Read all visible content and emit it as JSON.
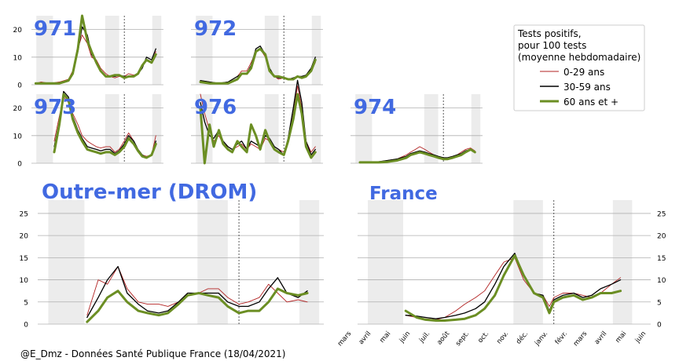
{
  "credit": "@E_Dmz - Données Santé Publique France (18/04/2021)",
  "colors": {
    "young": "#b22222",
    "middle": "#000000",
    "old": "#6b8e23",
    "title": "#4169e1",
    "shade": "#ececec",
    "grid": "#b0b0b0"
  },
  "legend": {
    "title_lines": [
      "Tests positifs,",
      "pour 100 tests",
      "(moyenne hebdomadaire)"
    ],
    "entries": [
      {
        "key": "young",
        "label": "0-29 ans"
      },
      {
        "key": "middle",
        "label": "30-59 ans"
      },
      {
        "key": "old",
        "label": "60 ans et +"
      }
    ]
  },
  "chart_data": [
    {
      "type": "line",
      "title": "971",
      "ylim": [
        0,
        25
      ],
      "yticks": [
        0,
        10,
        20
      ],
      "x_range": [
        "2020-03-01",
        "2021-05-10"
      ],
      "shaded_periods": [
        [
          "2020-03-17",
          "2020-05-11"
        ],
        [
          "2020-10-30",
          "2020-12-15"
        ],
        [
          "2021-04-03",
          "2021-05-03"
        ]
      ],
      "marker_date": "2021-01-01",
      "x": [
        "2020-03-15",
        "2020-04-01",
        "2020-05-01",
        "2020-06-01",
        "2020-07-01",
        "2020-07-15",
        "2020-08-01",
        "2020-08-15",
        "2020-09-01",
        "2020-09-15",
        "2020-10-01",
        "2020-10-15",
        "2020-11-01",
        "2020-11-15",
        "2020-12-01",
        "2020-12-15",
        "2021-01-01",
        "2021-01-15",
        "2021-02-01",
        "2021-02-15",
        "2021-03-01",
        "2021-03-15",
        "2021-04-01",
        "2021-04-15"
      ],
      "series": [
        {
          "name": "0-29 ans",
          "key": "young",
          "values": [
            0.5,
            1,
            0.5,
            1,
            2,
            5,
            13,
            18,
            15,
            10,
            9,
            6,
            4,
            3,
            2.5,
            3,
            3,
            4,
            3.5,
            4,
            7,
            9,
            8,
            12
          ]
        },
        {
          "name": "30-59 ans",
          "key": "middle",
          "values": [
            0.5,
            0.5,
            0.5,
            0.5,
            1.5,
            4,
            12,
            21,
            18,
            11,
            8,
            5,
            3,
            3,
            3,
            3.5,
            3,
            3,
            3,
            4,
            6,
            10,
            9,
            13
          ]
        },
        {
          "name": "60 ans et +",
          "key": "old",
          "values": [
            0.5,
            0.5,
            0.5,
            0.5,
            1.5,
            4,
            13,
            25,
            16,
            12,
            8,
            5,
            3,
            3,
            3.5,
            3.5,
            2.5,
            3,
            3,
            4,
            7,
            9,
            8,
            11
          ]
        }
      ]
    },
    {
      "type": "line",
      "title": "972",
      "ylim": [
        0,
        25
      ],
      "yticks": [
        0,
        10,
        20
      ],
      "x_range": [
        "2020-03-01",
        "2021-05-10"
      ],
      "shaded_periods": [
        [
          "2020-03-17",
          "2020-05-11"
        ],
        [
          "2020-10-30",
          "2020-12-15"
        ],
        [
          "2021-04-03",
          "2021-05-03"
        ]
      ],
      "marker_date": "2021-01-01",
      "x": [
        "2020-04-01",
        "2020-05-01",
        "2020-06-01",
        "2020-07-01",
        "2020-08-01",
        "2020-08-15",
        "2020-09-01",
        "2020-09-15",
        "2020-10-01",
        "2020-10-15",
        "2020-11-01",
        "2020-11-15",
        "2020-12-01",
        "2020-12-15",
        "2021-01-01",
        "2021-01-15",
        "2021-02-01",
        "2021-02-15",
        "2021-03-01",
        "2021-03-15",
        "2021-04-01",
        "2021-04-15"
      ],
      "series": [
        {
          "name": "0-29 ans",
          "key": "young",
          "values": [
            1.5,
            1,
            0.5,
            1,
            3,
            5,
            5,
            8,
            12,
            13,
            10,
            5,
            3,
            2,
            2.5,
            2,
            2,
            3,
            2.5,
            3,
            5,
            8
          ]
        },
        {
          "name": "30-59 ans",
          "key": "middle",
          "values": [
            1.5,
            1,
            0.5,
            1,
            3,
            4,
            4,
            7,
            13,
            14,
            11,
            6,
            3,
            2.5,
            2.5,
            2,
            2.5,
            3,
            3,
            3.5,
            6,
            10
          ]
        },
        {
          "name": "60 ans et +",
          "key": "old",
          "values": [
            1,
            0.5,
            0.5,
            0.5,
            2,
            4,
            4,
            6,
            12,
            13,
            11,
            5,
            3,
            3,
            2.5,
            2,
            2,
            3,
            2.5,
            3,
            5,
            9
          ]
        }
      ]
    },
    {
      "type": "line",
      "title": "973",
      "ylim": [
        0,
        25
      ],
      "yticks": [
        0,
        10,
        20
      ],
      "x_range": [
        "2020-03-01",
        "2021-05-10"
      ],
      "shaded_periods": [
        [
          "2020-03-17",
          "2020-05-11"
        ],
        [
          "2020-10-30",
          "2020-12-15"
        ],
        [
          "2021-04-03",
          "2021-05-03"
        ]
      ],
      "marker_date": "2021-01-01",
      "x": [
        "2020-05-15",
        "2020-06-01",
        "2020-06-15",
        "2020-07-01",
        "2020-07-15",
        "2020-08-01",
        "2020-08-15",
        "2020-09-01",
        "2020-09-15",
        "2020-10-01",
        "2020-10-15",
        "2020-11-01",
        "2020-11-15",
        "2020-12-01",
        "2020-12-15",
        "2021-01-01",
        "2021-01-15",
        "2021-02-01",
        "2021-02-15",
        "2021-03-01",
        "2021-03-15",
        "2021-04-01",
        "2021-04-15"
      ],
      "series": [
        {
          "name": "0-29 ans",
          "key": "young",
          "values": [
            8,
            17,
            24,
            22,
            18,
            14,
            10,
            8,
            7,
            6,
            5.5,
            6,
            6,
            4,
            5,
            8,
            11,
            8,
            5,
            3,
            2.5,
            3,
            10
          ]
        },
        {
          "name": "30-59 ans",
          "key": "middle",
          "values": [
            6,
            15,
            26,
            24,
            17,
            12,
            9,
            6,
            5.5,
            5,
            4.5,
            5,
            5,
            3.5,
            4.5,
            7,
            10,
            8,
            5,
            3,
            2,
            3,
            8
          ]
        },
        {
          "name": "60 ans et +",
          "key": "old",
          "values": [
            4,
            14,
            25,
            23,
            16,
            11,
            8,
            5,
            4.5,
            4,
            3.5,
            4,
            4,
            3,
            4,
            6,
            9,
            7,
            4.5,
            2.5,
            2,
            3,
            7
          ]
        }
      ]
    },
    {
      "type": "line",
      "title": "976",
      "ylim": [
        0,
        25
      ],
      "yticks": [
        0,
        10,
        20
      ],
      "x_range": [
        "2020-03-01",
        "2021-05-10"
      ],
      "shaded_periods": [
        [
          "2020-03-17",
          "2020-05-11"
        ],
        [
          "2020-10-30",
          "2020-12-15"
        ],
        [
          "2021-04-03",
          "2021-05-03"
        ]
      ],
      "marker_date": "2021-01-01",
      "x": [
        "2020-04-01",
        "2020-04-15",
        "2020-05-01",
        "2020-05-15",
        "2020-06-01",
        "2020-06-15",
        "2020-07-01",
        "2020-07-15",
        "2020-08-01",
        "2020-08-15",
        "2020-09-01",
        "2020-09-15",
        "2020-10-01",
        "2020-10-15",
        "2020-11-01",
        "2020-11-15",
        "2020-12-01",
        "2020-12-15",
        "2021-01-01",
        "2021-01-15",
        "2021-02-01",
        "2021-02-15",
        "2021-03-01",
        "2021-03-15",
        "2021-04-01",
        "2021-04-15"
      ],
      "series": [
        {
          "name": "0-29 ans",
          "key": "young",
          "values": [
            25,
            18,
            12,
            8,
            10,
            7,
            6,
            5,
            6,
            7,
            5,
            7,
            6,
            5,
            9,
            8,
            6,
            5,
            4,
            8,
            18,
            28,
            20,
            8,
            4,
            6
          ]
        },
        {
          "name": "30-59 ans",
          "key": "middle",
          "values": [
            22,
            15,
            10,
            9,
            12,
            8,
            6,
            5,
            7,
            8,
            5,
            8,
            7,
            6,
            10,
            9,
            6,
            5,
            3,
            9,
            20,
            30,
            22,
            8,
            3,
            5
          ]
        },
        {
          "name": "60 ans et +",
          "key": "old",
          "values": [
            20,
            0,
            14,
            6,
            12,
            7,
            5,
            4,
            8,
            6,
            4,
            14,
            10,
            5,
            12,
            8,
            5,
            4,
            3,
            8,
            16,
            25,
            18,
            6,
            2,
            4
          ]
        }
      ]
    },
    {
      "type": "line",
      "title": "974",
      "ylim": [
        0,
        25
      ],
      "yticks": [
        0,
        10,
        20
      ],
      "x_range": [
        "2020-03-01",
        "2021-05-10"
      ],
      "shaded_periods": [
        [
          "2020-03-17",
          "2020-05-11"
        ],
        [
          "2020-10-30",
          "2020-12-15"
        ],
        [
          "2021-04-03",
          "2021-05-03"
        ]
      ],
      "marker_date": "2021-01-01",
      "x": [
        "2020-04-01",
        "2020-05-01",
        "2020-06-01",
        "2020-07-01",
        "2020-08-01",
        "2020-09-01",
        "2020-09-15",
        "2020-10-01",
        "2020-10-15",
        "2020-11-01",
        "2020-11-15",
        "2020-12-01",
        "2020-12-15",
        "2021-01-01",
        "2021-01-15",
        "2021-02-01",
        "2021-02-15",
        "2021-03-01",
        "2021-03-15",
        "2021-04-01",
        "2021-04-15"
      ],
      "series": [
        {
          "name": "0-29 ans",
          "key": "young",
          "values": [
            0.5,
            0.5,
            0.5,
            1,
            1.5,
            3,
            4,
            5,
            6,
            5,
            4,
            3,
            2.5,
            2,
            2,
            2.5,
            3,
            4,
            5,
            5.5,
            4.5
          ]
        },
        {
          "name": "30-59 ans",
          "key": "middle",
          "values": [
            0.5,
            0.5,
            0.5,
            1,
            1.5,
            2.5,
            3.5,
            4,
            4.5,
            4,
            3.5,
            3,
            2.5,
            2,
            2,
            2.5,
            3,
            3.5,
            4.5,
            5,
            4
          ]
        },
        {
          "name": "60 ans et +",
          "key": "old",
          "values": [
            0.3,
            0.3,
            0.3,
            0.5,
            1,
            2,
            3,
            3.5,
            4,
            3.5,
            3,
            2.5,
            2,
            1.5,
            1.5,
            2,
            2.5,
            3,
            4,
            5,
            4
          ]
        }
      ]
    },
    {
      "type": "line",
      "title": "Outre-mer (DROM)",
      "ylim": [
        0,
        28
      ],
      "yticks": [
        0,
        5,
        10,
        15,
        20,
        25
      ],
      "x_range": [
        "2020-03-01",
        "2021-05-10"
      ],
      "shaded_periods": [
        [
          "2020-03-17",
          "2020-05-11"
        ],
        [
          "2020-10-30",
          "2020-12-15"
        ],
        [
          "2021-04-03",
          "2021-05-03"
        ]
      ],
      "marker_date": "2021-01-01",
      "x": [
        "2020-05-15",
        "2020-06-01",
        "2020-06-15",
        "2020-07-01",
        "2020-07-15",
        "2020-08-01",
        "2020-08-15",
        "2020-09-01",
        "2020-09-15",
        "2020-10-01",
        "2020-10-15",
        "2020-11-01",
        "2020-11-15",
        "2020-12-01",
        "2020-12-15",
        "2021-01-01",
        "2021-01-15",
        "2021-02-01",
        "2021-02-15",
        "2021-03-01",
        "2021-03-15",
        "2021-04-01",
        "2021-04-15"
      ],
      "series": [
        {
          "name": "0-29 ans",
          "key": "young",
          "values": [
            2,
            10,
            9,
            13,
            8,
            5,
            4.5,
            4.5,
            4,
            5,
            7,
            7,
            8,
            8,
            6,
            4.5,
            5,
            6,
            9,
            7,
            5,
            5.5,
            5
          ]
        },
        {
          "name": "30-59 ans",
          "key": "middle",
          "values": [
            1.5,
            6,
            10,
            13,
            7,
            4.5,
            3,
            2.5,
            3,
            5,
            7,
            7,
            7,
            7,
            5,
            4,
            4,
            5,
            8,
            10.5,
            7,
            6,
            7.5
          ]
        },
        {
          "name": "60 ans et +",
          "key": "old",
          "values": [
            0.5,
            3,
            6,
            7.5,
            5,
            3,
            2.5,
            2,
            2.5,
            4.5,
            6.5,
            7,
            6.5,
            6,
            4,
            2.5,
            3,
            3,
            5,
            8,
            7,
            6.5,
            7
          ]
        }
      ]
    },
    {
      "type": "line",
      "title": "France",
      "ylim": [
        0,
        28
      ],
      "yticks": [
        0,
        5,
        10,
        15,
        20,
        25
      ],
      "x_range": [
        "2020-03-01",
        "2021-06-01"
      ],
      "x_ticks": [
        "mars",
        "avril",
        "mai",
        "juin",
        "juil.",
        "août",
        "sept.",
        "oct.",
        "nov.",
        "déc.",
        "janv.",
        "févr.",
        "mars",
        "avril",
        "mai",
        "juin"
      ],
      "shaded_periods": [
        [
          "2020-03-17",
          "2020-05-11"
        ],
        [
          "2020-10-30",
          "2020-12-15"
        ],
        [
          "2021-04-03",
          "2021-05-03"
        ]
      ],
      "marker_date": "2021-01-01",
      "x": [
        "2020-05-15",
        "2020-06-01",
        "2020-06-15",
        "2020-07-01",
        "2020-07-15",
        "2020-08-01",
        "2020-08-15",
        "2020-09-01",
        "2020-09-15",
        "2020-10-01",
        "2020-10-15",
        "2020-11-01",
        "2020-11-15",
        "2020-12-01",
        "2020-12-15",
        "2020-12-25",
        "2021-01-01",
        "2021-01-15",
        "2021-02-01",
        "2021-02-15",
        "2021-03-01",
        "2021-03-15",
        "2021-04-01",
        "2021-04-15"
      ],
      "series": [
        {
          "name": "0-29 ans",
          "key": "young",
          "values": [
            2,
            1.5,
            1.2,
            1,
            1.5,
            3,
            4.5,
            6,
            7.5,
            11,
            14,
            15,
            10,
            7,
            6.5,
            4,
            6,
            7,
            7,
            6.5,
            6,
            7,
            9,
            10.5
          ]
        },
        {
          "name": "30-59 ans",
          "key": "middle",
          "values": [
            2,
            1.8,
            1.5,
            1.2,
            1.5,
            2,
            2.5,
            3.5,
            5,
            9,
            13,
            16,
            11,
            7,
            6.5,
            3,
            5.5,
            6.5,
            7,
            6,
            6.5,
            8,
            9,
            10
          ]
        },
        {
          "name": "60 ans et +",
          "key": "old",
          "values": [
            3,
            1.5,
            1,
            0.8,
            0.8,
            1,
            1.2,
            2,
            3.5,
            6.5,
            11,
            15.5,
            11,
            7,
            6,
            2.5,
            5,
            6,
            6.5,
            5.5,
            6,
            7,
            7,
            7.5
          ]
        }
      ]
    }
  ]
}
